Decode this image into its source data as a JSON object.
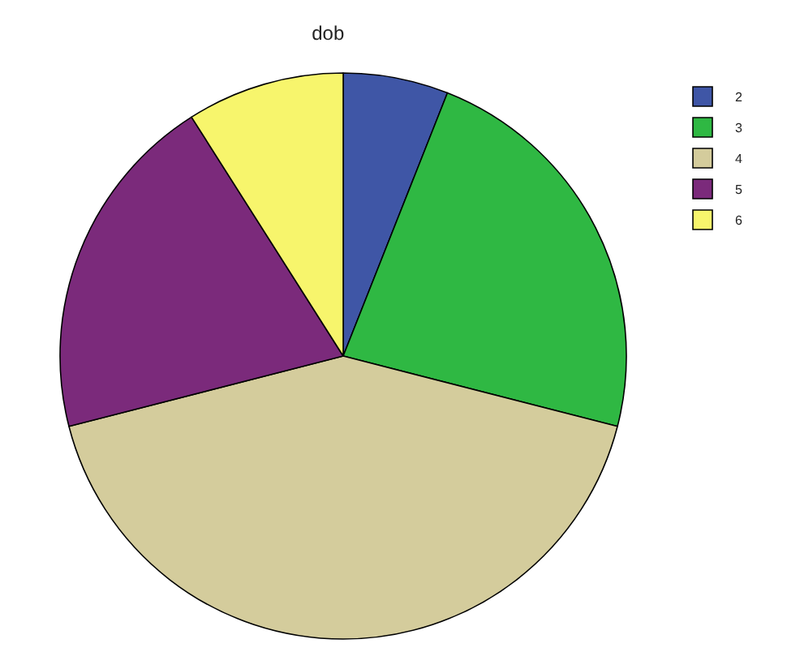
{
  "chart_data": {
    "type": "pie",
    "title": "dob",
    "categories": [
      "2",
      "3",
      "4",
      "5",
      "6"
    ],
    "values": [
      6,
      23,
      42,
      20,
      9
    ],
    "colors": [
      "#3f56a6",
      "#2fb843",
      "#d4cc9c",
      "#7b2a7b",
      "#f7f56c"
    ],
    "legend": "top right"
  }
}
